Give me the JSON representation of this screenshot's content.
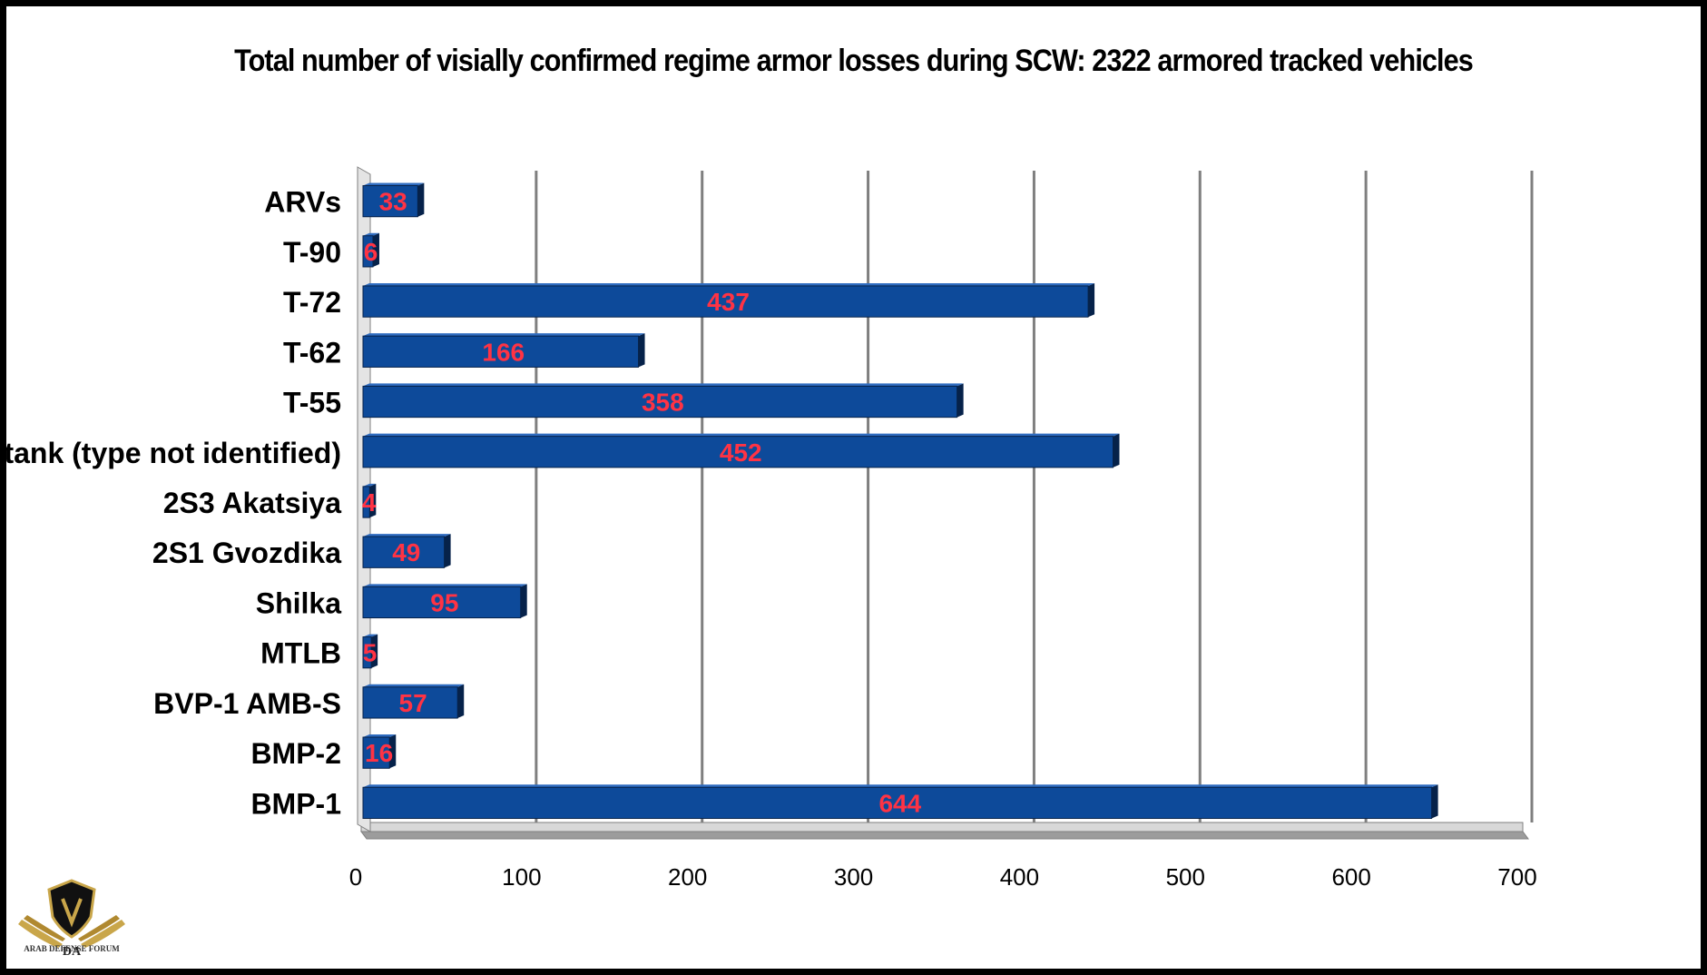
{
  "title": "Total number of visially confirmed regime armor losses during SCW: 2322 armored tracked vehicles",
  "watermark": {
    "initials": "DA",
    "text": "ARAB DEFENSE FORUM"
  },
  "colors": {
    "bar": "#0d4a9a",
    "bar_shadow": "#06224a",
    "data_label": "#ff3344",
    "grid": "#7f7f7f"
  },
  "chart_data": {
    "type": "bar",
    "orientation": "horizontal",
    "title": "Total number of visially confirmed regime armor losses during SCW: 2322 armored tracked vehicles",
    "categories": [
      "ARVs",
      "T-90",
      "T-72",
      "T-62",
      "T-55",
      "tank (type not identified)",
      "2S3 Akatsiya",
      "2S1 Gvozdika",
      "Shilka",
      "MTLB",
      "BVP-1 AMB-S",
      "BMP-2",
      "BMP-1"
    ],
    "values": [
      33,
      6,
      437,
      166,
      358,
      452,
      4,
      49,
      95,
      5,
      57,
      16,
      644
    ],
    "xlim": [
      0,
      700
    ],
    "xticks": [
      0,
      100,
      200,
      300,
      400,
      500,
      600,
      700
    ],
    "xlabel": "",
    "ylabel": "",
    "grid": "vertical",
    "legend": "none",
    "data_labels": true
  }
}
